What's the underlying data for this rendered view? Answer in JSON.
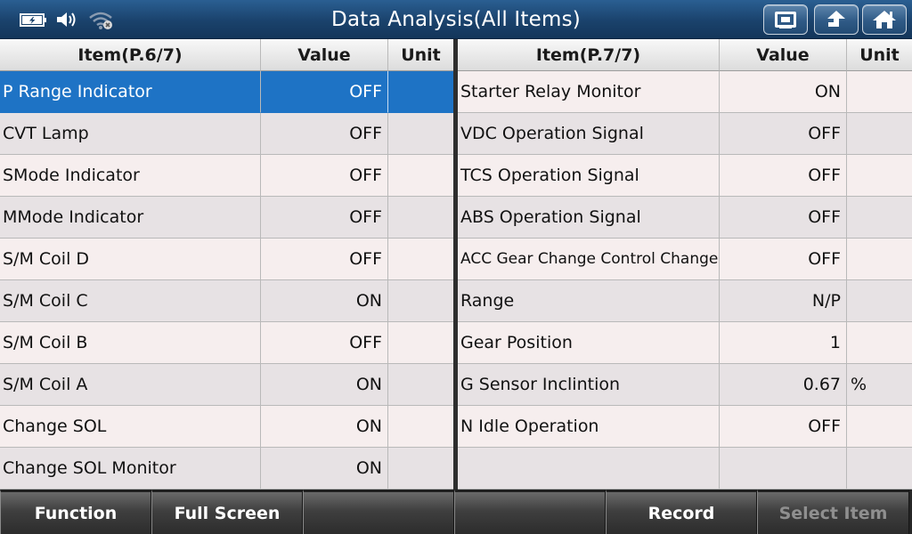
{
  "header": {
    "title": "Data Analysis(All Items)",
    "status_icons": [
      "battery-icon",
      "volume-icon",
      "wifi-icon"
    ],
    "buttons": [
      "screenshot-icon",
      "back-icon",
      "home-icon"
    ]
  },
  "left_table": {
    "headers": {
      "item": "Item(P.6/7)",
      "value": "Value",
      "unit": "Unit"
    },
    "rows": [
      {
        "item": "P Range Indicator",
        "value": "OFF",
        "unit": ""
      },
      {
        "item": "CVT Lamp",
        "value": "OFF",
        "unit": ""
      },
      {
        "item": "SMode Indicator",
        "value": "OFF",
        "unit": ""
      },
      {
        "item": "MMode Indicator",
        "value": "OFF",
        "unit": ""
      },
      {
        "item": "S/M Coil D",
        "value": "OFF",
        "unit": ""
      },
      {
        "item": "S/M Coil C",
        "value": "ON",
        "unit": ""
      },
      {
        "item": "S/M Coil B",
        "value": "OFF",
        "unit": ""
      },
      {
        "item": "S/M Coil A",
        "value": "ON",
        "unit": ""
      },
      {
        "item": "Change SOL",
        "value": "ON",
        "unit": ""
      },
      {
        "item": "Change SOL Monitor",
        "value": "ON",
        "unit": ""
      }
    ]
  },
  "right_table": {
    "headers": {
      "item": "Item(P.7/7)",
      "value": "Value",
      "unit": "Unit"
    },
    "rows": [
      {
        "item": "Starter Relay Monitor",
        "value": "ON",
        "unit": ""
      },
      {
        "item": "VDC Operation Signal",
        "value": "OFF",
        "unit": ""
      },
      {
        "item": "TCS Operation Signal",
        "value": "OFF",
        "unit": ""
      },
      {
        "item": "ABS Operation Signal",
        "value": "OFF",
        "unit": ""
      },
      {
        "item": "ACC Gear Change Control Change",
        "value": "OFF",
        "unit": ""
      },
      {
        "item": "Range",
        "value": "N/P",
        "unit": ""
      },
      {
        "item": "Gear Position",
        "value": "1",
        "unit": ""
      },
      {
        "item": "G Sensor Inclintion",
        "value": "0.67",
        "unit": "%"
      },
      {
        "item": "N Idle Operation",
        "value": "OFF",
        "unit": ""
      },
      {
        "item": "",
        "value": "",
        "unit": ""
      }
    ]
  },
  "footer": {
    "buttons": [
      {
        "label": "Function",
        "enabled": true
      },
      {
        "label": "Full Screen",
        "enabled": true
      },
      {
        "label": "",
        "enabled": true
      },
      {
        "label": "",
        "enabled": true
      },
      {
        "label": "Record",
        "enabled": true
      },
      {
        "label": "Select Item",
        "enabled": false
      }
    ]
  },
  "colors": {
    "header_bg": "#1a426c",
    "selected_row": "#1e73c5",
    "row_odd": "#f6eeee",
    "row_even": "#e7e2e4",
    "disabled_text": "#8f8f8f"
  }
}
